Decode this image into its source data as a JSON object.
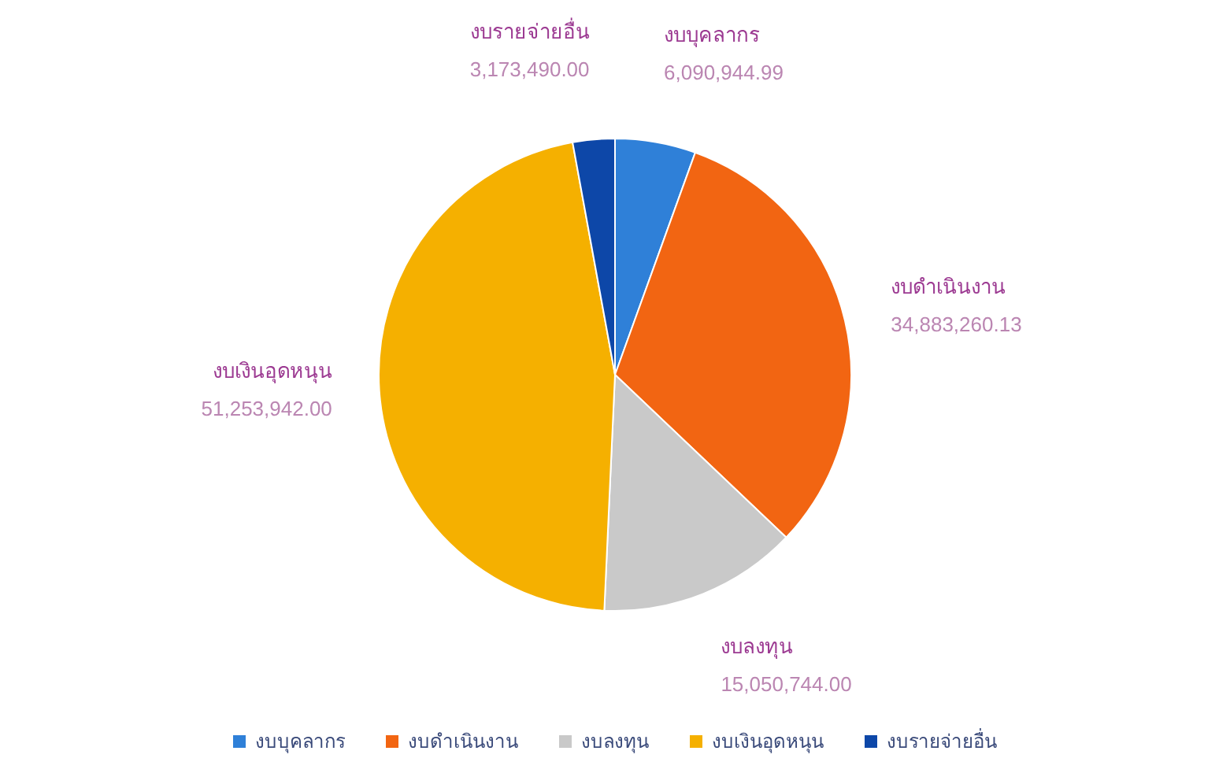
{
  "chart_data": {
    "type": "pie",
    "categories": [
      "งบบุคลากร",
      "งบดำเนินงาน",
      "งบลงทุน",
      "งบเงินอุดหนุน",
      "งบรายจ่ายอื่น"
    ],
    "values": [
      6090944.99,
      34883260.13,
      15050744.0,
      51253942.0,
      3173490.0
    ],
    "colors": [
      "#2f80d8",
      "#f26512",
      "#c9c9c9",
      "#f5b000",
      "#0d47a8"
    ],
    "value_labels": [
      "6,090,944.99",
      "34,883,260.13",
      "15,050,744.00",
      "51,253,942.00",
      "3,173,490.00"
    ],
    "legend": "bottom"
  }
}
